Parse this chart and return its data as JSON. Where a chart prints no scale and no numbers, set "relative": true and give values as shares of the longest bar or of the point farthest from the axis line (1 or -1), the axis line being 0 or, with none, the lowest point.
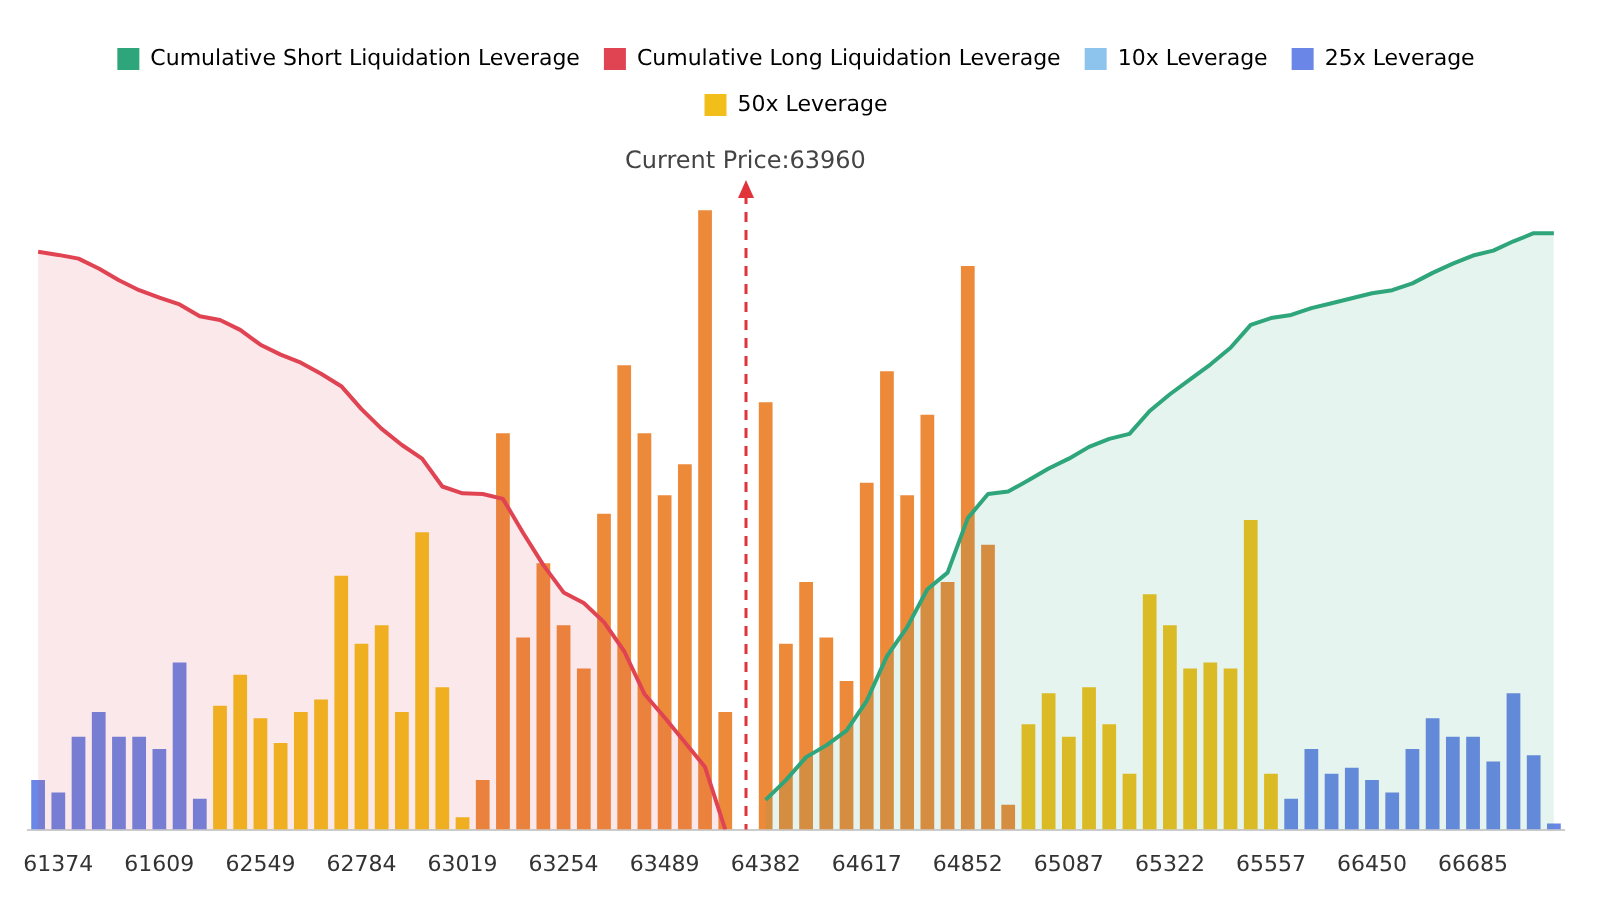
{
  "chart_data": {
    "type": "bar",
    "relative": true,
    "legend": "top",
    "categories": [
      null,
      "61374",
      null,
      null,
      null,
      null,
      "61609",
      null,
      null,
      null,
      null,
      "62549",
      null,
      null,
      null,
      null,
      "62784",
      null,
      null,
      null,
      null,
      "63019",
      null,
      null,
      null,
      null,
      "63254",
      null,
      null,
      null,
      null,
      "63489",
      null,
      null,
      null,
      null,
      "64382",
      null,
      null,
      null,
      null,
      "64617",
      null,
      null,
      null,
      null,
      "64852",
      null,
      null,
      null,
      null,
      "65087",
      null,
      null,
      null,
      null,
      "65322",
      null,
      null,
      null,
      null,
      "65557",
      null,
      null,
      null,
      null,
      "66450",
      null,
      null,
      null,
      null,
      "66685",
      null,
      null,
      null,
      null
    ],
    "series": [
      {
        "name": "Cumulative Short Liquidation Leverage",
        "type": "area",
        "color": "#2ea57a",
        "values": [
          null,
          null,
          null,
          null,
          null,
          null,
          null,
          null,
          null,
          null,
          null,
          null,
          null,
          null,
          null,
          null,
          null,
          null,
          null,
          null,
          null,
          null,
          null,
          null,
          null,
          null,
          null,
          null,
          null,
          null,
          null,
          null,
          null,
          null,
          null,
          null,
          0.048,
          0.08,
          0.117,
          0.136,
          0.16,
          0.208,
          0.28,
          0.327,
          0.388,
          0.415,
          0.503,
          0.542,
          0.546,
          0.564,
          0.583,
          0.599,
          0.618,
          0.631,
          0.639,
          0.676,
          0.703,
          0.727,
          0.751,
          0.778,
          0.815,
          0.826,
          0.831,
          0.842,
          0.85,
          0.858,
          0.866,
          0.871,
          0.882,
          0.899,
          0.914,
          0.927,
          0.935,
          0.95,
          0.963,
          0.963
        ]
      },
      {
        "name": "Cumulative Long Liquidation Leverage",
        "type": "area",
        "color": "#e04452",
        "values": [
          0.933,
          0.928,
          0.922,
          0.906,
          0.887,
          0.871,
          0.859,
          0.848,
          0.829,
          0.823,
          0.807,
          0.783,
          0.767,
          0.754,
          0.736,
          0.716,
          0.679,
          0.647,
          0.621,
          0.599,
          0.554,
          0.543,
          0.542,
          0.534,
          0.479,
          0.427,
          0.383,
          0.366,
          0.335,
          0.288,
          0.219,
          0.181,
          0.141,
          0.101,
          0,
          null,
          null,
          null,
          null,
          null,
          null,
          null,
          null,
          null,
          null,
          null,
          null,
          null,
          null,
          null,
          null,
          null,
          null,
          null,
          null,
          null,
          null,
          null,
          null,
          null,
          null,
          null,
          null,
          null,
          null,
          null,
          null,
          null,
          null,
          null,
          null,
          null,
          null,
          null,
          null,
          null
        ]
      },
      {
        "name": "10x Leverage",
        "color": "#8cc4ee",
        "values": [
          null,
          null,
          null,
          null,
          null,
          null,
          null,
          null,
          null,
          null,
          null,
          null,
          null,
          null,
          null,
          null,
          null,
          null,
          null,
          null,
          null,
          null,
          null,
          null,
          null,
          null,
          null,
          null,
          null,
          null,
          null,
          null,
          null,
          null,
          null,
          null,
          null,
          null,
          null,
          null,
          null,
          null,
          null,
          null,
          null,
          null,
          null,
          null,
          null,
          null,
          null,
          null,
          null,
          null,
          null,
          null,
          null,
          null,
          null,
          null,
          null,
          null,
          null,
          null,
          null,
          null,
          null,
          null,
          null,
          null,
          null,
          null,
          null,
          null,
          null,
          null
        ]
      },
      {
        "name": "25x Leverage",
        "color": "#6a86e6",
        "values": [
          0.08,
          0.06,
          0.15,
          0.19,
          0.15,
          0.15,
          0.13,
          0.27,
          0.05,
          null,
          null,
          null,
          null,
          null,
          null,
          null,
          null,
          null,
          null,
          null,
          null,
          null,
          null,
          null,
          null,
          null,
          null,
          null,
          null,
          null,
          null,
          null,
          null,
          null,
          null,
          null,
          null,
          null,
          null,
          null,
          null,
          null,
          null,
          null,
          null,
          null,
          null,
          null,
          null,
          null,
          null,
          null,
          null,
          null,
          null,
          null,
          null,
          null,
          null,
          null,
          null,
          null,
          0.05,
          0.13,
          0.09,
          0.1,
          0.08,
          0.06,
          0.13,
          0.18,
          0.15,
          0.15,
          0.11,
          0.22,
          0.12,
          0.01
        ]
      },
      {
        "name": "50x Leverage",
        "color": "#f2bf1a",
        "values": [
          null,
          null,
          null,
          null,
          null,
          null,
          null,
          null,
          null,
          0.2,
          0.25,
          0.18,
          0.14,
          0.19,
          0.21,
          0.41,
          0.3,
          0.33,
          0.19,
          0.48,
          0.23,
          0.02,
          null,
          null,
          null,
          null,
          null,
          null,
          null,
          null,
          null,
          null,
          null,
          null,
          null,
          null,
          null,
          null,
          null,
          null,
          null,
          null,
          null,
          null,
          null,
          null,
          null,
          null,
          null,
          0.17,
          0.22,
          0.15,
          0.23,
          0.17,
          0.09,
          0.38,
          0.33,
          0.26,
          0.27,
          0.26,
          0.5,
          0.09,
          null,
          null,
          null,
          null,
          null,
          null,
          null,
          null,
          null,
          null,
          null,
          null,
          null,
          null
        ]
      },
      {
        "color": "#ec8a3a",
        "values": [
          null,
          null,
          null,
          null,
          null,
          null,
          null,
          null,
          null,
          null,
          null,
          null,
          null,
          null,
          null,
          null,
          null,
          null,
          null,
          null,
          null,
          null,
          0.08,
          0.64,
          0.31,
          0.43,
          0.33,
          0.26,
          0.51,
          0.75,
          0.64,
          0.54,
          0.59,
          1,
          0.19,
          null,
          0.69,
          0.3,
          0.4,
          0.31,
          0.24,
          0.56,
          0.74,
          0.54,
          0.67,
          0.4,
          0.91,
          0.46,
          0.04,
          null,
          null,
          null,
          null,
          null,
          null,
          null,
          null,
          null,
          null,
          null,
          null,
          null,
          null,
          null,
          null,
          null,
          null,
          null,
          null,
          null,
          null,
          null,
          null,
          null,
          null,
          null
        ]
      }
    ],
    "annotations": [
      "Current Price:63960"
    ]
  }
}
